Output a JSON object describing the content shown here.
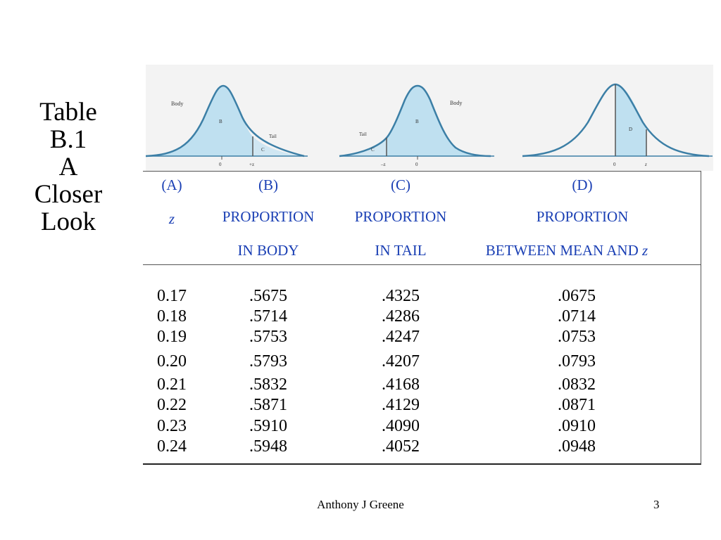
{
  "side_title": {
    "lines": [
      "Table",
      "B.1",
      "A",
      "Closer",
      "Look"
    ]
  },
  "figure": {
    "labels": {
      "body": "Body",
      "tail": "Tail",
      "b": "B",
      "c": "C",
      "d": "D",
      "zero": "0",
      "plus_z": "+z",
      "minus_z": "–z",
      "z": "z"
    }
  },
  "table": {
    "col_letters": [
      "(A)",
      "(B)",
      "(C)",
      "(D)"
    ],
    "header_row2": [
      "z",
      "PROPORTION",
      "PROPORTION",
      "PROPORTION"
    ],
    "header_row3": [
      "",
      "IN BODY",
      "IN TAIL",
      "BETWEEN  MEAN AND"
    ],
    "header_z_suffix": "z",
    "rows": [
      [
        "0.17",
        ".5675",
        ".4325",
        ".0675"
      ],
      [
        "0.18",
        ".5714",
        ".4286",
        ".0714"
      ],
      [
        "0.19",
        ".5753",
        ".4247",
        ".0753"
      ],
      [
        "0.20",
        ".5793",
        ".4207",
        ".0793"
      ],
      [
        "0.21",
        ".5832",
        ".4168",
        ".0832"
      ],
      [
        "0.22",
        ".5871",
        ".4129",
        ".0871"
      ],
      [
        "0.23",
        ".5910",
        ".4090",
        ".0910"
      ],
      [
        "0.24",
        ".5948",
        ".4052",
        ".0948"
      ]
    ]
  },
  "footer": {
    "author": "Anthony J Greene",
    "page": "3"
  },
  "colors": {
    "curve_fill": "#bfe0f0",
    "curve_line": "#3c7fa6",
    "header_text": "#1a3fb4"
  }
}
